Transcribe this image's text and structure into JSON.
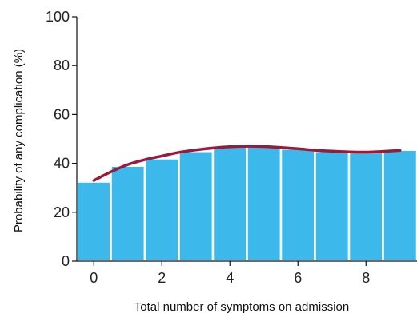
{
  "chart_data": {
    "type": "bar",
    "title": "",
    "xlabel": "Total number of symptoms on admission",
    "ylabel": "Probability of any complication (%)",
    "x": [
      0,
      1,
      2,
      3,
      4,
      5,
      6,
      7,
      8,
      9
    ],
    "values": [
      32.5,
      39,
      42,
      45,
      47,
      47,
      46,
      45,
      44.5,
      45.5
    ],
    "xlim": [
      -0.5,
      9.5
    ],
    "ylim": [
      0,
      100
    ],
    "xticks": [
      0,
      2,
      4,
      6,
      8
    ],
    "yticks": [
      0,
      20,
      40,
      60,
      80,
      100
    ],
    "xtick_labels": [
      "0",
      "2",
      "4",
      "6",
      "8"
    ],
    "ytick_labels": [
      "0",
      "20",
      "40",
      "60",
      "80",
      "100"
    ],
    "trend_line": {
      "x": [
        0,
        0.5,
        1,
        1.5,
        2,
        2.5,
        3,
        3.5,
        4,
        4.5,
        5,
        5.5,
        6,
        6.5,
        7,
        7.5,
        8,
        8.5,
        9
      ],
      "y": [
        33,
        36.5,
        39.5,
        41.5,
        43,
        44.5,
        45.5,
        46.3,
        46.8,
        47,
        46.9,
        46.5,
        46,
        45.4,
        45,
        44.7,
        44.6,
        44.9,
        45.3
      ]
    },
    "colors": {
      "bars": "#3db8ea",
      "bar_gap": "#ffffff",
      "trend_line": "#9b1a3a",
      "axis": "#111111"
    },
    "grid": false,
    "legend": "none"
  }
}
